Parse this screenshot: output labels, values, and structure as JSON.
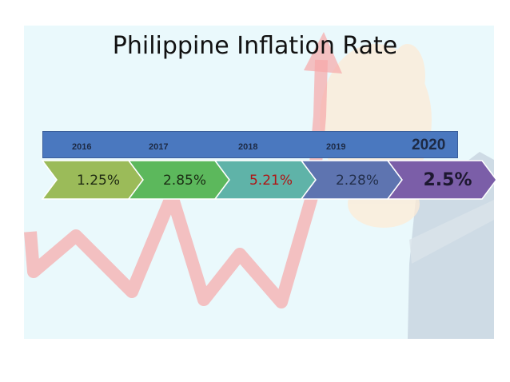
{
  "title": "Philippine Inflation Rate",
  "chart_data": {
    "type": "bar",
    "title": "Philippine Inflation Rate",
    "categories": [
      "2016",
      "2017",
      "2018",
      "2019",
      "2020"
    ],
    "values": [
      1.25,
      2.85,
      5.21,
      2.28,
      2.5
    ],
    "value_labels": [
      "1.25%",
      "2.85%",
      "5.21%",
      "2.28%",
      "2.5%"
    ],
    "segment_colors": [
      "#9bbb59",
      "#5cb85c",
      "#5fb3a8",
      "#5e74b0",
      "#7b5ea8"
    ],
    "label_colors": [
      "#1f2a12",
      "#1b2e14",
      "#b01515",
      "#23304d",
      "#1d1830"
    ],
    "year_bar_color": "#4a78bf",
    "background_line_color": "#f7a8a8"
  }
}
